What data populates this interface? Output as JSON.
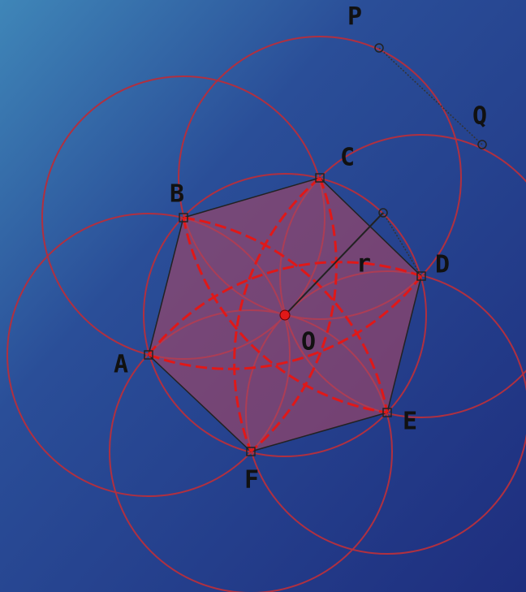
{
  "labels": {
    "P": "P",
    "Q": "Q",
    "A": "A",
    "B": "B",
    "C": "C",
    "D": "D",
    "E": "E",
    "F": "F",
    "O": "O",
    "r": "r"
  }
}
